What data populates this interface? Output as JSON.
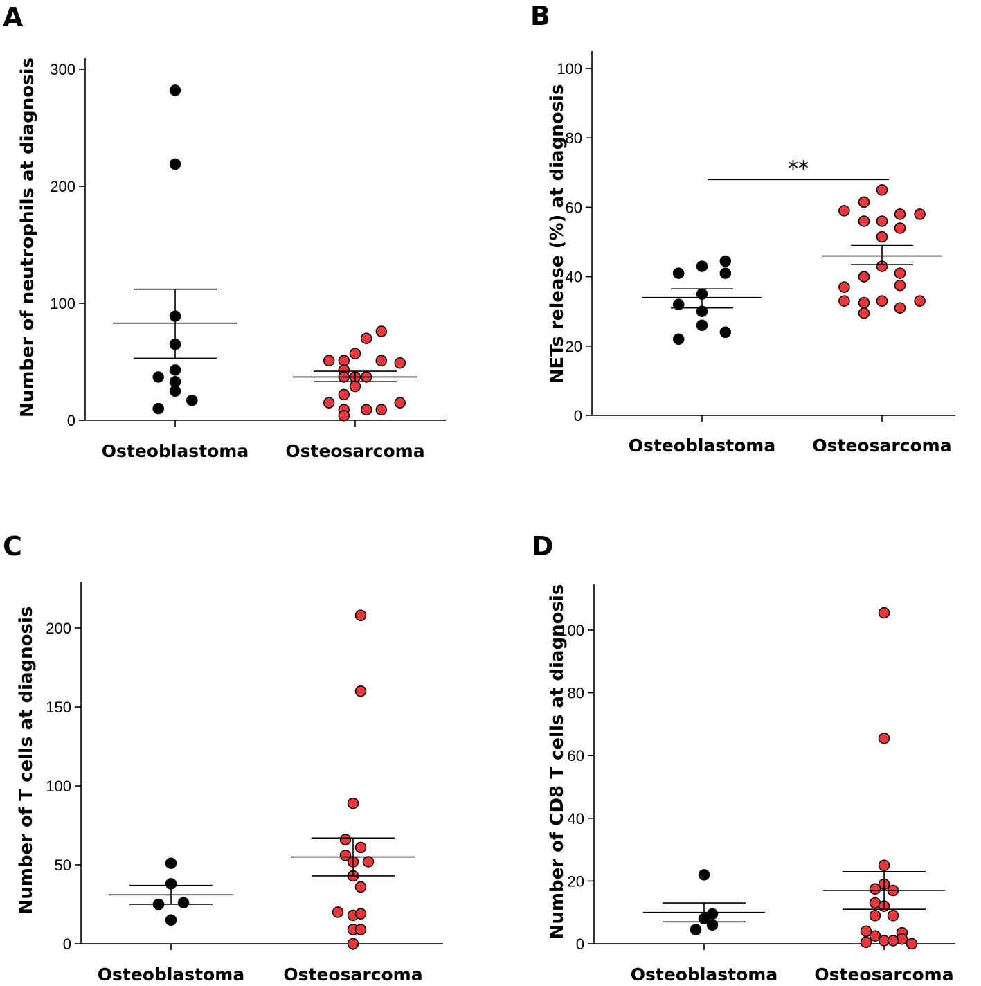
{
  "chart_data": [
    {
      "type": "scatter",
      "panel": "A",
      "ylabel": "Number of neutrophils at diagnosis",
      "categories": [
        "Osteoblastoma",
        "Osteosarcoma"
      ],
      "ylim": [
        0,
        300
      ],
      "yticks": [
        0,
        100,
        200,
        300
      ],
      "series": [
        {
          "name": "Osteoblastoma",
          "color": "#000000",
          "points": [
            [
              0,
              282
            ],
            [
              0,
              219
            ],
            [
              0,
              89
            ],
            [
              0,
              65
            ],
            [
              0,
              43
            ],
            [
              -0.18,
              37
            ],
            [
              0,
              33
            ],
            [
              0,
              25
            ],
            [
              0.18,
              17
            ],
            [
              -0.18,
              10
            ]
          ],
          "mean": 83,
          "sem_low": 53,
          "sem_high": 112
        },
        {
          "name": "Osteosarcoma",
          "color": "#E8383D",
          "points": [
            [
              0.28,
              76
            ],
            [
              0.12,
              70
            ],
            [
              0,
              57
            ],
            [
              -0.28,
              51
            ],
            [
              -0.12,
              51
            ],
            [
              0.28,
              51
            ],
            [
              0.48,
              49
            ],
            [
              -0.12,
              43
            ],
            [
              -0.12,
              37
            ],
            [
              0,
              37
            ],
            [
              0.12,
              37
            ],
            [
              0,
              29
            ],
            [
              -0.12,
              22
            ],
            [
              -0.28,
              15
            ],
            [
              0.48,
              15
            ],
            [
              -0.12,
              9
            ],
            [
              0.12,
              9
            ],
            [
              0.28,
              9
            ],
            [
              -0.12,
              4
            ]
          ],
          "mean": 37,
          "sem_low": 33,
          "sem_high": 42
        }
      ]
    },
    {
      "type": "scatter",
      "panel": "B",
      "ylabel": "NETs release (%) at diagnosis",
      "categories": [
        "Osteoblastoma",
        "Osteosarcoma"
      ],
      "ylim": [
        0,
        100
      ],
      "yticks": [
        0,
        20,
        40,
        60,
        80,
        100
      ],
      "significance": "**",
      "series": [
        {
          "name": "Osteoblastoma",
          "color": "#000000",
          "points": [
            [
              -0.26,
              41
            ],
            [
              0,
              43
            ],
            [
              0.26,
              44.5
            ],
            [
              0.26,
              41
            ],
            [
              0,
              35
            ],
            [
              -0.26,
              32
            ],
            [
              0,
              30
            ],
            [
              0,
              26
            ],
            [
              -0.26,
              22
            ],
            [
              0.26,
              24
            ]
          ],
          "mean": 34,
          "sem_low": 31,
          "sem_high": 36.5
        },
        {
          "name": "Osteosarcoma",
          "color": "#E8383D",
          "points": [
            [
              0,
              65
            ],
            [
              -0.2,
              61.5
            ],
            [
              -0.42,
              59
            ],
            [
              0.2,
              58
            ],
            [
              0.42,
              58
            ],
            [
              -0.2,
              56
            ],
            [
              0,
              56
            ],
            [
              0.2,
              54
            ],
            [
              0,
              51.5
            ],
            [
              0,
              43
            ],
            [
              -0.2,
              40
            ],
            [
              0.2,
              41
            ],
            [
              -0.42,
              37
            ],
            [
              0.2,
              37.5
            ],
            [
              -0.42,
              33
            ],
            [
              -0.2,
              32.5
            ],
            [
              0,
              33
            ],
            [
              0.42,
              33
            ],
            [
              -0.2,
              29.5
            ],
            [
              0.2,
              31
            ]
          ],
          "mean": 46,
          "sem_low": 43.5,
          "sem_high": 49
        }
      ]
    },
    {
      "type": "scatter",
      "panel": "C",
      "ylabel": "Number of T cells at diagnosis",
      "categories": [
        "Osteoblastoma",
        "Osteosarcoma"
      ],
      "ylim": [
        0,
        230
      ],
      "yticks": [
        0,
        50,
        100,
        150,
        200
      ],
      "series": [
        {
          "name": "Osteoblastoma",
          "color": "#000000",
          "points": [
            [
              0,
              51
            ],
            [
              0,
              38
            ],
            [
              -0.18,
              25
            ],
            [
              0.18,
              26
            ],
            [
              0,
              15
            ]
          ],
          "mean": 31,
          "sem_low": 25,
          "sem_high": 37
        },
        {
          "name": "Osteosarcoma",
          "color": "#E8383D",
          "points": [
            [
              0.11,
              208
            ],
            [
              0.11,
              160
            ],
            [
              0,
              89
            ],
            [
              -0.11,
              66
            ],
            [
              -0.11,
              56
            ],
            [
              0.11,
              61
            ],
            [
              0,
              52
            ],
            [
              0.22,
              52
            ],
            [
              0,
              43
            ],
            [
              0.11,
              36
            ],
            [
              -0.22,
              20
            ],
            [
              0,
              18
            ],
            [
              0.11,
              19
            ],
            [
              0,
              9
            ],
            [
              0.11,
              9
            ],
            [
              0,
              0
            ]
          ],
          "mean": 55,
          "sem_low": 43,
          "sem_high": 67
        }
      ]
    },
    {
      "type": "scatter",
      "panel": "D",
      "ylabel": "Number of CD8 T cells at diagnosis",
      "categories": [
        "Osteoblastoma",
        "Osteosarcoma"
      ],
      "ylim": [
        0,
        115
      ],
      "yticks": [
        0,
        20,
        40,
        60,
        80,
        100
      ],
      "series": [
        {
          "name": "Osteoblastoma",
          "color": "#000000",
          "points": [
            [
              0,
              22
            ],
            [
              0.12,
              9.5
            ],
            [
              0,
              8
            ],
            [
              -0.12,
              4.5
            ],
            [
              0.12,
              6
            ]
          ],
          "mean": 10,
          "sem_low": 7,
          "sem_high": 13
        },
        {
          "name": "Osteosarcoma",
          "color": "#E8383D",
          "points": [
            [
              0,
              105.5
            ],
            [
              0,
              65.5
            ],
            [
              0,
              25
            ],
            [
              0,
              19
            ],
            [
              -0.13,
              17.5
            ],
            [
              0.13,
              17
            ],
            [
              -0.13,
              13
            ],
            [
              0,
              12
            ],
            [
              -0.13,
              9
            ],
            [
              0.13,
              9
            ],
            [
              -0.26,
              4
            ],
            [
              0.26,
              3.5
            ],
            [
              -0.13,
              2.5
            ],
            [
              0.26,
              1.5
            ],
            [
              -0.26,
              0.5
            ],
            [
              0,
              1
            ],
            [
              0.13,
              1
            ],
            [
              0.4,
              0
            ]
          ],
          "mean": 17,
          "sem_low": 11,
          "sem_high": 23
        }
      ]
    }
  ]
}
